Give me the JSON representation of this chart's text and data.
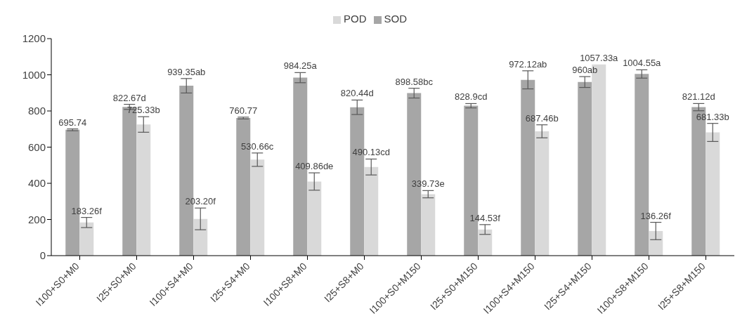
{
  "chart_data": {
    "type": "bar",
    "categories": [
      "I100+S0+M0",
      "I25+S0+M0",
      "I100+S4+M0",
      "I25+S4+M0",
      "I100+S8+M0",
      "I25+S8+M0",
      "I100+S0+M150",
      "I25+S0+M150",
      "I100+S4+M150",
      "I25+S4+M150",
      "I100+S8+M150",
      "I25+S8+M150"
    ],
    "series": [
      {
        "name": "SOD",
        "color": "#a6a6a6",
        "values": [
          695.74,
          822.67,
          939.35,
          760.77,
          984.25,
          820.44,
          898.58,
          828.9,
          972.12,
          960,
          1004.55,
          821.12
        ],
        "errors": [
          5,
          14,
          40,
          5,
          28,
          40,
          27,
          12,
          50,
          30,
          23,
          20
        ],
        "value_labels": [
          "695.74",
          "822.67d",
          "939.35ab",
          "760.77",
          "984.25a",
          "820.44d",
          "898.58bc",
          "828.9cd",
          "972.12ab",
          "960ab",
          "1004.55a",
          "821.12d"
        ]
      },
      {
        "name": "POD",
        "color": "#d9d9d9",
        "values": [
          183.26,
          725.33,
          203.2,
          530.66,
          409.86,
          490.13,
          339.73,
          144.53,
          687.46,
          1057.33,
          136.26,
          681.33
        ],
        "errors": [
          28,
          43,
          60,
          37,
          48,
          44,
          20,
          27,
          36,
          null,
          48,
          50
        ],
        "value_labels": [
          "183.26f",
          "725.33b",
          "203.20f",
          "530.66c",
          "409.86de",
          "490.13cd",
          "339.73e",
          "144.53f",
          "687.46b",
          "1057.33a",
          "136.26f",
          "681.33b"
        ]
      }
    ],
    "ylim": [
      0,
      1200
    ],
    "yticks": [
      0,
      200,
      400,
      600,
      800,
      1000,
      1200
    ],
    "legend": "top",
    "grid": false
  }
}
